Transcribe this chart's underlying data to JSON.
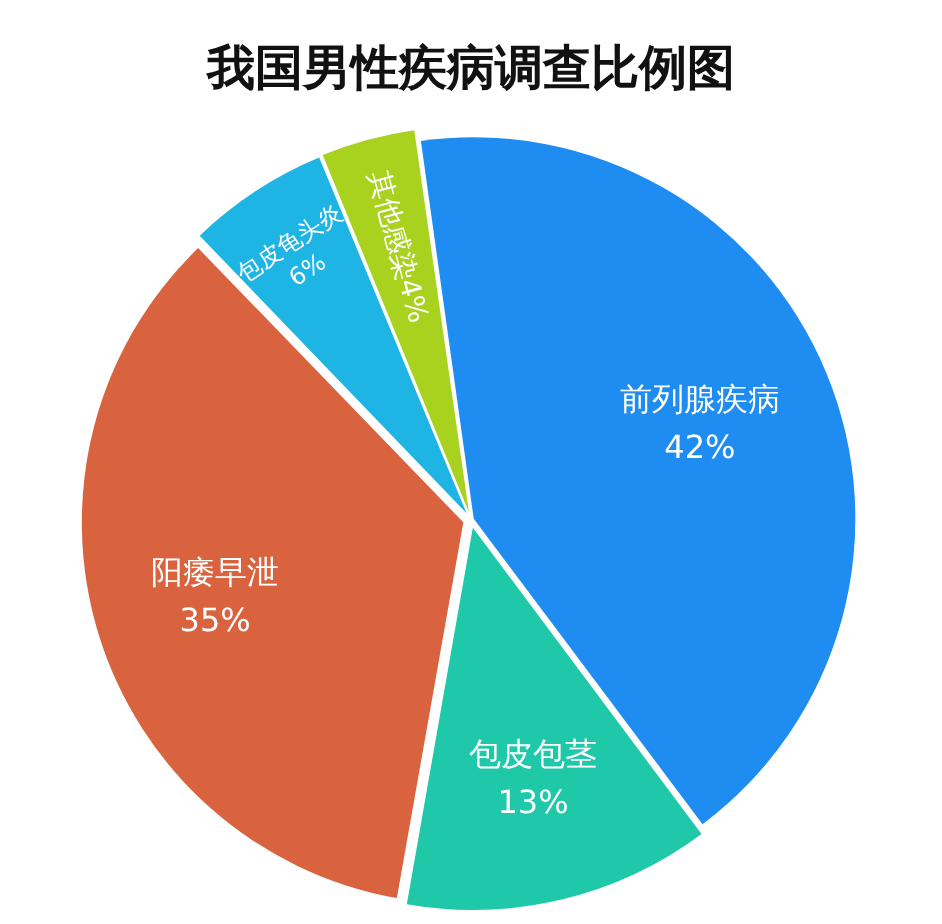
{
  "chart_data": {
    "type": "pie",
    "title": "我国男性疾病调查比例图",
    "categories": [
      "前列腺疾病",
      "包皮包茎",
      "阳痿早泄",
      "包皮龟头炎",
      "其他感染"
    ],
    "values": [
      42,
      13,
      35,
      6,
      4
    ],
    "colors": [
      "#1e8cf0",
      "#1ec8a8",
      "#d9623f",
      "#1eb4e4",
      "#a8d21e"
    ],
    "value_labels": [
      "42%",
      "13%",
      "35%",
      "6%",
      "4%"
    ],
    "legend": false
  }
}
